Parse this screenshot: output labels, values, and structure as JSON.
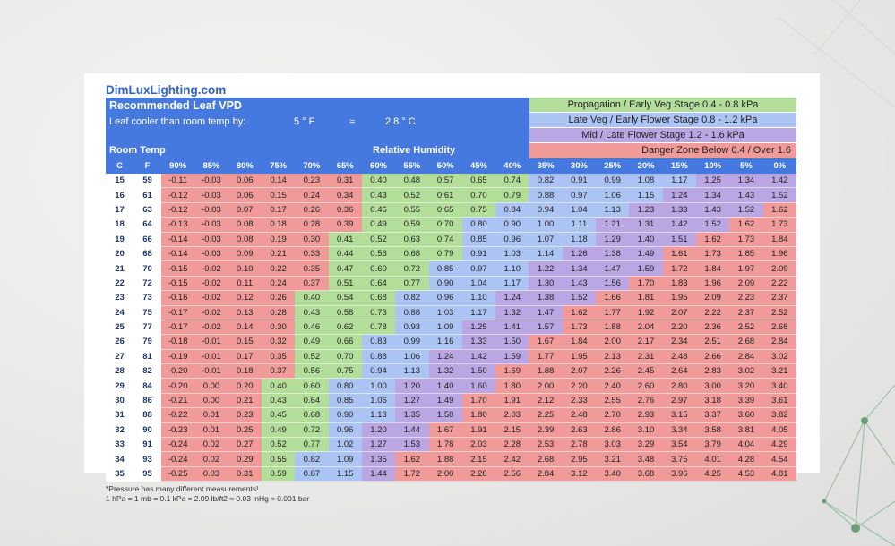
{
  "brand": "DimLuxLighting.com",
  "title": "Recommended Leaf VPD",
  "cooler_label": "Leaf cooler than room temp by:",
  "cooler_f": "5 ° F",
  "cooler_approx": "≈",
  "cooler_c": "2.8 ° C",
  "room_temp_label": "Room Temp",
  "rh_label": "Relative Humidity",
  "legend": [
    {
      "text": "Propagation / Early Veg Stage  0.4 - 0.8 kPa",
      "color": "#b3de9a"
    },
    {
      "text": "Late Veg / Early Flower Stage  0.8 - 1.2 kPa",
      "color": "#abc4f4"
    },
    {
      "text": "Mid / Late Flower Stage  1.2 - 1.6 kPa",
      "color": "#b9a6e3"
    },
    {
      "text": "Danger Zone   Below 0.4 / Over 1.6",
      "color": "#f09a9a"
    }
  ],
  "footnote_1": "*Pressure has many different measurements!",
  "footnote_2": "1 hPa = 1 mb = 0.1 kPa ≈ 2.09 lb/ft2 ≈ 0.03 inHg ≈ 0.001 bar",
  "chart_data": {
    "type": "heatmap",
    "title": "Recommended Leaf VPD",
    "xlabel": "Relative Humidity",
    "ylabel": "Room Temp",
    "temp_headers": [
      "C",
      "F"
    ],
    "humidity_headers": [
      "90%",
      "85%",
      "80%",
      "75%",
      "70%",
      "65%",
      "60%",
      "55%",
      "50%",
      "45%",
      "40%",
      "35%",
      "30%",
      "25%",
      "20%",
      "15%",
      "10%",
      "5%",
      "0%"
    ],
    "temps_c": [
      "15",
      "16",
      "17",
      "18",
      "19",
      "20",
      "21",
      "22",
      "23",
      "24",
      "25",
      "26",
      "27",
      "28",
      "29",
      "30",
      "31",
      "32",
      "33",
      "34",
      "35"
    ],
    "temps_f": [
      "59",
      "61",
      "63",
      "64",
      "66",
      "68",
      "70",
      "72",
      "73",
      "75",
      "77",
      "79",
      "81",
      "82",
      "84",
      "86",
      "88",
      "90",
      "91",
      "93",
      "95"
    ],
    "values": [
      [
        "-0.11",
        "-0.03",
        "0.06",
        "0.14",
        "0.23",
        "0.31",
        "0.40",
        "0.48",
        "0.57",
        "0.65",
        "0.74",
        "0.82",
        "0.91",
        "0.99",
        "1.08",
        "1.17",
        "1.25",
        "1.34",
        "1.42"
      ],
      [
        "-0.12",
        "-0.03",
        "0.06",
        "0.15",
        "0.24",
        "0.34",
        "0.43",
        "0.52",
        "0.61",
        "0.70",
        "0.79",
        "0.88",
        "0.97",
        "1.06",
        "1.15",
        "1.24",
        "1.34",
        "1.43",
        "1.52"
      ],
      [
        "-0.12",
        "-0.03",
        "0.07",
        "0.17",
        "0.26",
        "0.36",
        "0.46",
        "0.55",
        "0.65",
        "0.75",
        "0.84",
        "0.94",
        "1.04",
        "1.13",
        "1.23",
        "1.33",
        "1.43",
        "1.52",
        "1.62"
      ],
      [
        "-0.13",
        "-0.03",
        "0.08",
        "0.18",
        "0.28",
        "0.39",
        "0.49",
        "0.59",
        "0.70",
        "0.80",
        "0.90",
        "1.00",
        "1.11",
        "1.21",
        "1.31",
        "1.42",
        "1.52",
        "1.62",
        "1.73"
      ],
      [
        "-0.14",
        "-0.03",
        "0.08",
        "0.19",
        "0.30",
        "0.41",
        "0.52",
        "0.63",
        "0.74",
        "0.85",
        "0.96",
        "1.07",
        "1.18",
        "1.29",
        "1.40",
        "1.51",
        "1.62",
        "1.73",
        "1.84"
      ],
      [
        "-0.14",
        "-0.03",
        "0.09",
        "0.21",
        "0.33",
        "0.44",
        "0.56",
        "0.68",
        "0.79",
        "0.91",
        "1.03",
        "1.14",
        "1.26",
        "1.38",
        "1.49",
        "1.61",
        "1.73",
        "1.85",
        "1.96"
      ],
      [
        "-0.15",
        "-0.02",
        "0.10",
        "0.22",
        "0.35",
        "0.47",
        "0.60",
        "0.72",
        "0.85",
        "0.97",
        "1.10",
        "1.22",
        "1.34",
        "1.47",
        "1.59",
        "1.72",
        "1.84",
        "1.97",
        "2.09"
      ],
      [
        "-0.15",
        "-0.02",
        "0.11",
        "0.24",
        "0.37",
        "0.51",
        "0.64",
        "0.77",
        "0.90",
        "1.04",
        "1.17",
        "1.30",
        "1.43",
        "1.56",
        "1.70",
        "1.83",
        "1.96",
        "2.09",
        "2.22"
      ],
      [
        "-0.16",
        "-0.02",
        "0.12",
        "0.26",
        "0.40",
        "0.54",
        "0.68",
        "0.82",
        "0.96",
        "1.10",
        "1.24",
        "1.38",
        "1.52",
        "1.66",
        "1.81",
        "1.95",
        "2.09",
        "2.23",
        "2.37"
      ],
      [
        "-0.17",
        "-0.02",
        "0.13",
        "0.28",
        "0.43",
        "0.58",
        "0.73",
        "0.88",
        "1.03",
        "1.17",
        "1.32",
        "1.47",
        "1.62",
        "1.77",
        "1.92",
        "2.07",
        "2.22",
        "2.37",
        "2.52"
      ],
      [
        "-0.17",
        "-0.02",
        "0.14",
        "0.30",
        "0.46",
        "0.62",
        "0.78",
        "0.93",
        "1.09",
        "1.25",
        "1.41",
        "1.57",
        "1.73",
        "1.88",
        "2.04",
        "2.20",
        "2.36",
        "2.52",
        "2.68"
      ],
      [
        "-0.18",
        "-0.01",
        "0.15",
        "0.32",
        "0.49",
        "0.66",
        "0.83",
        "0.99",
        "1.16",
        "1.33",
        "1.50",
        "1.67",
        "1.84",
        "2.00",
        "2.17",
        "2.34",
        "2.51",
        "2.68",
        "2.84"
      ],
      [
        "-0.19",
        "-0.01",
        "0.17",
        "0.35",
        "0.52",
        "0.70",
        "0.88",
        "1.06",
        "1.24",
        "1.42",
        "1.59",
        "1.77",
        "1.95",
        "2.13",
        "2.31",
        "2.48",
        "2.66",
        "2.84",
        "3.02"
      ],
      [
        "-0.20",
        "-0.01",
        "0.18",
        "0.37",
        "0.56",
        "0.75",
        "0.94",
        "1.13",
        "1.32",
        "1.50",
        "1.69",
        "1.88",
        "2.07",
        "2.26",
        "2.45",
        "2.64",
        "2.83",
        "3.02",
        "3.21"
      ],
      [
        "-0.20",
        "0.00",
        "0.20",
        "0.40",
        "0.60",
        "0.80",
        "1.00",
        "1.20",
        "1.40",
        "1.60",
        "1.80",
        "2.00",
        "2.20",
        "2.40",
        "2.60",
        "2.80",
        "3.00",
        "3.20",
        "3.40"
      ],
      [
        "-0.21",
        "0.00",
        "0.21",
        "0.43",
        "0.64",
        "0.85",
        "1.06",
        "1.27",
        "1.49",
        "1.70",
        "1.91",
        "2.12",
        "2.33",
        "2.55",
        "2.76",
        "2.97",
        "3.18",
        "3.39",
        "3.61"
      ],
      [
        "-0.22",
        "0.01",
        "0.23",
        "0.45",
        "0.68",
        "0.90",
        "1.13",
        "1.35",
        "1.58",
        "1.80",
        "2.03",
        "2.25",
        "2.48",
        "2.70",
        "2.93",
        "3.15",
        "3.37",
        "3.60",
        "3.82"
      ],
      [
        "-0.23",
        "0.01",
        "0.25",
        "0.49",
        "0.72",
        "0.96",
        "1.20",
        "1.44",
        "1.67",
        "1.91",
        "2.15",
        "2.39",
        "2.63",
        "2.86",
        "3.10",
        "3.34",
        "3.58",
        "3.81",
        "4.05"
      ],
      [
        "-0.24",
        "0.02",
        "0.27",
        "0.52",
        "0.77",
        "1.02",
        "1.27",
        "1.53",
        "1.78",
        "2.03",
        "2.28",
        "2.53",
        "2.78",
        "3.03",
        "3.29",
        "3.54",
        "3.79",
        "4.04",
        "4.29"
      ],
      [
        "-0.24",
        "0.02",
        "0.29",
        "0.55",
        "0.82",
        "1.09",
        "1.35",
        "1.62",
        "1.88",
        "2.15",
        "2.42",
        "2.68",
        "2.95",
        "3.21",
        "3.48",
        "3.75",
        "4.01",
        "4.28",
        "4.54"
      ],
      [
        "-0.25",
        "0.03",
        "0.31",
        "0.59",
        "0.87",
        "1.15",
        "1.44",
        "1.72",
        "2.00",
        "2.28",
        "2.56",
        "2.84",
        "3.12",
        "3.40",
        "3.68",
        "3.96",
        "4.25",
        "4.53",
        "4.81"
      ]
    ],
    "zones": [
      {
        "label": "Propagation / Early Veg Stage",
        "min": 0.4,
        "max": 0.8,
        "color": "#b3de9a"
      },
      {
        "label": "Late Veg / Early Flower Stage",
        "min": 0.8,
        "max": 1.2,
        "color": "#abc4f4"
      },
      {
        "label": "Mid / Late Flower Stage",
        "min": 1.2,
        "max": 1.6,
        "color": "#b9a6e3"
      },
      {
        "label": "Danger Zone",
        "min": null,
        "max": null,
        "color": "#f09a9a"
      }
    ],
    "legend_position": "top-right"
  }
}
